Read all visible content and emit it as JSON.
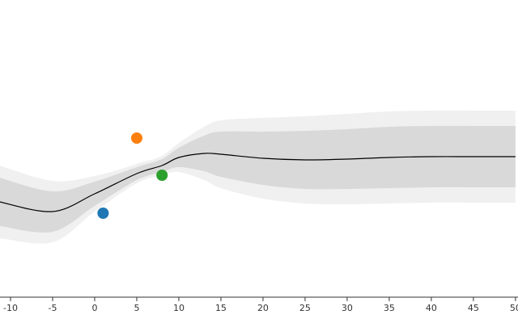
{
  "chart_data": {
    "type": "line",
    "x": [
      -11.3,
      -5,
      0,
      5,
      8,
      10,
      13,
      15,
      20,
      25,
      30,
      35,
      40,
      45,
      50
    ],
    "bands": [
      {
        "color": "#f0f0f0",
        "lower": [
          -2,
          -2.1,
          -1.34,
          -0.64,
          -0.44,
          -0.36,
          -0.56,
          -0.76,
          -1.02,
          -1.14,
          -1.16,
          -1.14,
          -1.12,
          -1.12,
          -1.12
        ],
        "upper": [
          -0.2,
          -0.58,
          -0.46,
          -0.16,
          0.04,
          0.36,
          0.76,
          0.92,
          0.98,
          1.02,
          1.08,
          1.14,
          1.16,
          1.16,
          1.16
        ]
      },
      {
        "color": "#d9d9d9",
        "lower": [
          -1.7,
          -1.84,
          -1.2,
          -0.56,
          -0.36,
          -0.24,
          -0.34,
          -0.48,
          -0.68,
          -0.78,
          -0.78,
          -0.76,
          -0.74,
          -0.74,
          -0.74
        ],
        "upper": [
          -0.5,
          -0.84,
          -0.6,
          -0.24,
          -0.04,
          0.24,
          0.54,
          0.64,
          0.64,
          0.66,
          0.7,
          0.76,
          0.78,
          0.78,
          0.78
        ]
      }
    ],
    "series": [
      {
        "color": "#000000",
        "values": [
          -1.1,
          -1.34,
          -0.9,
          -0.4,
          -0.2,
          0,
          0.1,
          0.08,
          -0.02,
          -0.06,
          -0.04,
          0,
          0.02,
          0.02,
          0.02
        ]
      }
    ],
    "points": {
      "x": [
        1,
        5,
        8
      ],
      "y": [
        -1.38,
        0.48,
        -0.44
      ],
      "colors": [
        "#1f77b4",
        "#ff7f0e",
        "#2ca02c"
      ]
    },
    "xlim": [
      -11.25,
      50.3
    ],
    "ylim": [
      -3.46,
      3.9
    ],
    "xticks": [
      -10,
      -5,
      0,
      5,
      10,
      15,
      20,
      25,
      30,
      35,
      40,
      45,
      50
    ]
  }
}
